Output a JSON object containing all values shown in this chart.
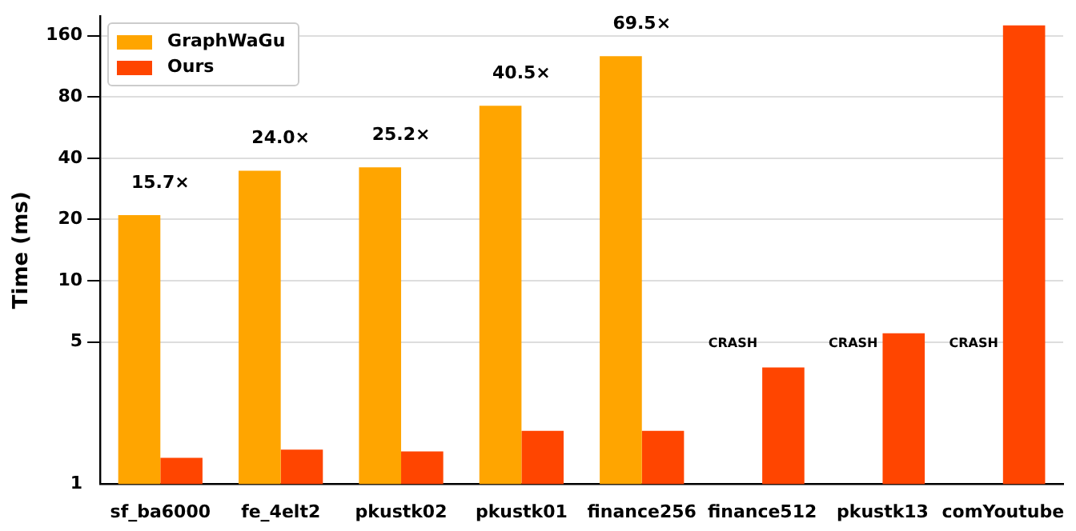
{
  "chart_data": {
    "type": "bar",
    "ylabel": "Time (ms)",
    "categories": [
      "sf_ba6000",
      "fe_4elt2",
      "pkustk02",
      "pkustk01",
      "finance256",
      "finance512",
      "pkustk13",
      "comYoutube"
    ],
    "series": [
      {
        "name": "GraphWaGu",
        "color": "#ffa500",
        "values": [
          21.0,
          34.7,
          36.1,
          72.4,
          127,
          null,
          null,
          null
        ]
      },
      {
        "name": "Ours",
        "color": "#ff4500",
        "values": [
          1.35,
          1.48,
          1.45,
          1.83,
          1.83,
          3.75,
          5.52,
          180
        ]
      }
    ],
    "annotations": [
      "15.7×",
      "24.0×",
      "25.2×",
      "40.5×",
      "69.5×",
      "CRASH",
      "CRASH",
      "CRASH"
    ],
    "log": "y",
    "ylim": [
      1,
      200
    ],
    "yticks": [
      1,
      5,
      10,
      20,
      40,
      80,
      160
    ],
    "grid": "y",
    "legend": "top left"
  }
}
